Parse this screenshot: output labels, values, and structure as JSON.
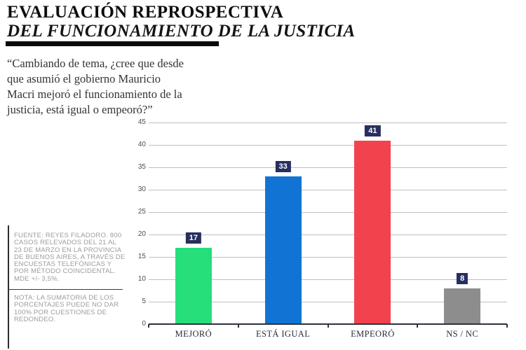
{
  "header": {
    "title": "EVALUACIÓN REPROSPECTIVA",
    "subtitle": "DEL FUNCIONAMIENTO DE LA JUSTICIA"
  },
  "question": "“Cambiando de tema, ¿cree que desde\nque asumió el gobierno Mauricio\nMacri mejoró el funcionamiento de la\njusticia, está igual o empeoró?”",
  "source_note": "FUENTE: REYES FILADORO. 800\nCASOS RELEVADOS DEL 21 AL\n23 DE MARZO EN LA PROVINCIA\nDE BUENOS AIRES, A TRAVÉS DE\nENCUESTAS TELEFÓNICAS Y\nPOR MÉTODO COINCIDENTAL.\nMDE +/- 3,5%.",
  "rounding_note": "NOTA: LA SUMATORIA DE LOS\nPORCENTAJES PUEDE NO DAR\n100% POR CUESTIONES DE\nREDONDEO.",
  "chart_data": {
    "type": "bar",
    "categories": [
      "MEJORÓ",
      "ESTÁ IGUAL",
      "EMPEORÓ",
      "NS / NC"
    ],
    "values": [
      17,
      33,
      41,
      8
    ],
    "bar_colors": [
      "#26DF7B",
      "#1174D4",
      "#F2424E",
      "#8D8D8D"
    ],
    "value_label_box_color": "#262F5E",
    "value_label_text_color": "#FFFFFF",
    "y_ticks": [
      0,
      5,
      10,
      15,
      20,
      25,
      30,
      35,
      40,
      45
    ],
    "ylim": [
      0,
      45
    ],
    "grid": true,
    "legend": "none",
    "title": "",
    "xlabel": "",
    "ylabel": ""
  }
}
